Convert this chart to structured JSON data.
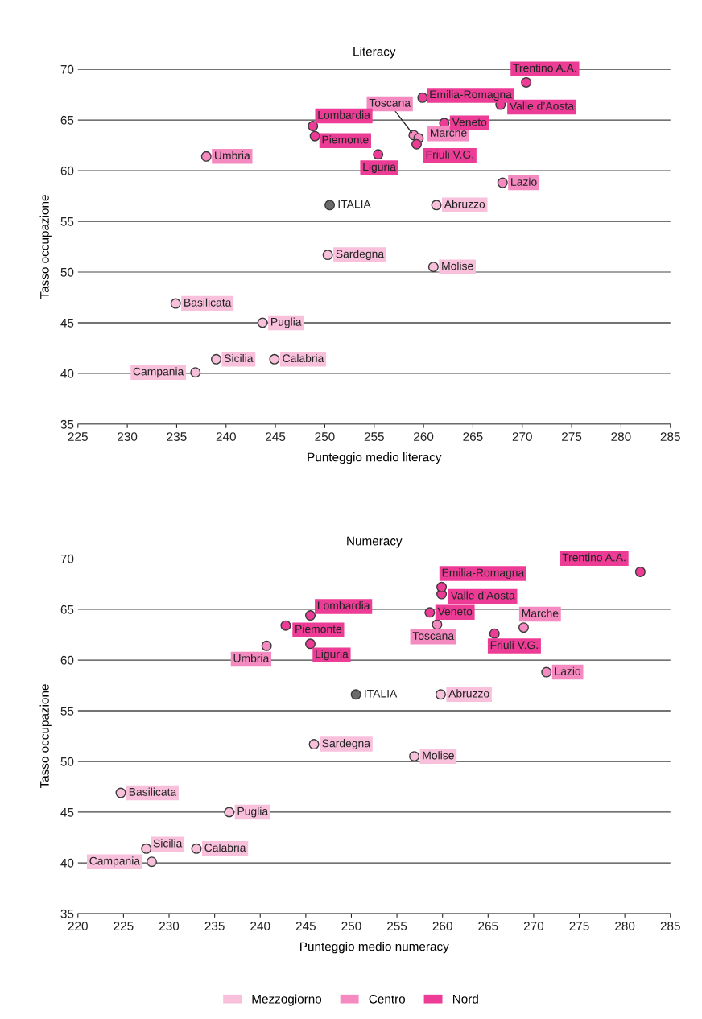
{
  "chart_data": [
    {
      "type": "scatter",
      "title": "Literacy",
      "xlabel": "Punteggio medio literacy",
      "ylabel": "Tasso occupazione",
      "xlim": [
        225,
        285
      ],
      "xticks": [
        225,
        230,
        235,
        240,
        245,
        250,
        255,
        260,
        265,
        270,
        275,
        280,
        285
      ],
      "ylim": [
        35,
        70
      ],
      "yticks": [
        35,
        40,
        45,
        50,
        55,
        60,
        65,
        70
      ],
      "grid": "y",
      "marker": "circle",
      "legend": "bottom",
      "series": [
        {
          "name": "Mezzogiorno",
          "color": "#f9c0dc",
          "x": [
            261.3,
            261.0,
            236.9,
            243.7,
            234.9,
            244.9,
            239.0,
            250.3
          ],
          "values": [
            56.6,
            50.5,
            40.1,
            45.0,
            46.9,
            41.4,
            41.4,
            51.7
          ],
          "value_labels": [
            "Abruzzo",
            "Molise",
            "Campania",
            "Puglia",
            "Basilicata",
            "Calabria",
            "Sicilia",
            "Sardegna"
          ]
        },
        {
          "name": "Centro",
          "color": "#f48ac0",
          "x": [
            259.0,
            238.0,
            259.5,
            268.0
          ],
          "values": [
            63.5,
            61.4,
            63.2,
            58.8
          ],
          "value_labels": [
            "Toscana",
            "Umbria",
            "Marche",
            "Lazio"
          ]
        },
        {
          "name": "Nord",
          "color": "#ec3c96",
          "x": [
            249.0,
            267.8,
            248.8,
            270.4,
            262.1,
            259.3,
            255.4,
            259.9
          ],
          "values": [
            63.4,
            66.5,
            64.4,
            68.7,
            64.7,
            62.6,
            61.6,
            67.2
          ],
          "value_labels": [
            "Piemonte",
            "Valle d’Aosta",
            "Lombardia",
            "Trentino A.A.",
            "Veneto",
            "Friuli V.G.",
            "Liguria",
            "Emilia-Romagna"
          ]
        },
        {
          "color": "#6b6b6b",
          "x": [
            250.5
          ],
          "values": [
            56.6
          ],
          "value_labels": [
            "ITALIA"
          ]
        }
      ]
    },
    {
      "type": "scatter",
      "title": "Numeracy",
      "xlabel": "Punteggio medio numeracy",
      "ylabel": "Tasso occupazione",
      "xlim": [
        220,
        285
      ],
      "xticks": [
        220,
        225,
        230,
        235,
        240,
        245,
        250,
        255,
        260,
        265,
        270,
        275,
        280,
        285
      ],
      "ylim": [
        35,
        70
      ],
      "yticks": [
        35,
        40,
        45,
        50,
        55,
        60,
        65,
        70
      ],
      "grid": "y",
      "marker": "circle",
      "series": [
        {
          "color": "#f9c0dc",
          "x": [
            259.8,
            256.9,
            228.1,
            236.6,
            224.7,
            233.0,
            227.5,
            245.9
          ],
          "values": [
            56.6,
            50.5,
            40.1,
            45.0,
            46.9,
            41.4,
            41.4,
            51.7
          ],
          "value_labels": [
            "Abruzzo",
            "Molise",
            "Campania",
            "Puglia",
            "Basilicata",
            "Calabria",
            "Sicilia",
            "Sardegna"
          ]
        },
        {
          "color": "#f48ac0",
          "x": [
            259.4,
            240.7,
            268.9,
            271.4
          ],
          "values": [
            63.5,
            61.4,
            63.2,
            58.8
          ],
          "value_labels": [
            "Toscana",
            "Umbria",
            "Marche",
            "Lazio"
          ]
        },
        {
          "color": "#ec3c96",
          "x": [
            242.8,
            259.9,
            245.5,
            281.7,
            258.6,
            265.7,
            245.5,
            259.9
          ],
          "values": [
            63.4,
            66.5,
            64.4,
            68.7,
            64.7,
            62.6,
            61.6,
            67.2
          ],
          "value_labels": [
            "Piemonte",
            "Valle d’Aosta",
            "Lombardia",
            "Trentino A.A.",
            "Veneto",
            "Friuli V.G.",
            "Liguria",
            "Emilia-Romagna"
          ]
        },
        {
          "color": "#6b6b6b",
          "x": [
            250.5
          ],
          "values": [
            56.6
          ],
          "value_labels": [
            "ITALIA"
          ]
        }
      ]
    }
  ]
}
